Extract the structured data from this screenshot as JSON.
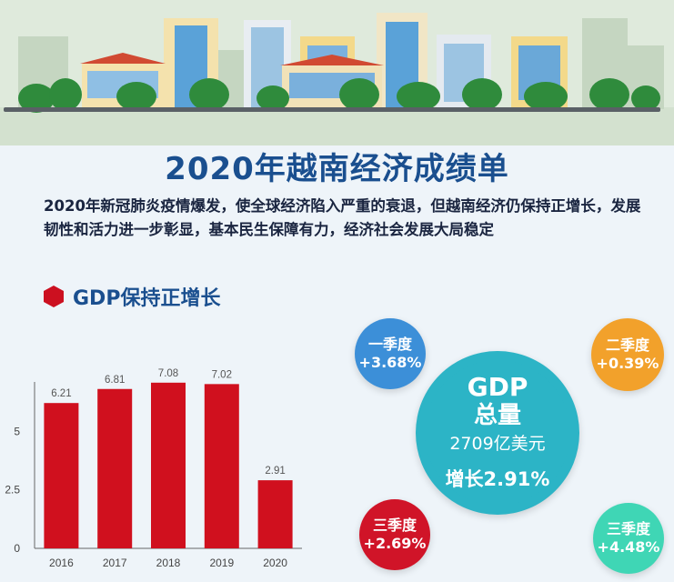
{
  "header": {
    "title": "2020年越南经济成绩单",
    "intro": "2020年新冠肺炎疫情爆发，使全球经济陷入严重的衰退，但越南经济仍保持正增长，发展韧性和活力进一步彰显，基本民生保障有力，经济社会发展大局稳定"
  },
  "section": {
    "title": "GDP保持正增长"
  },
  "gdp_total": {
    "label_line1": "GDP",
    "label_line2": "总量",
    "value": "2709亿美元",
    "growth": "增长2.91%",
    "color": "#2cb4c6"
  },
  "quarters": [
    {
      "label": "一季度",
      "value": "+3.68%",
      "color": "#3c8fd8"
    },
    {
      "label": "二季度",
      "value": "+0.39%",
      "color": "#f2a12b"
    },
    {
      "label": "三季度",
      "value": "+2.69%",
      "color": "#d01428"
    },
    {
      "label": "三季度",
      "value": "+4.48%",
      "color": "#3fd6b5"
    }
  ],
  "chart_data": {
    "type": "bar",
    "categories": [
      "2016",
      "2017",
      "2018",
      "2019",
      "2020"
    ],
    "values": [
      6.21,
      6.81,
      7.08,
      7.02,
      2.91
    ],
    "data_labels": [
      "6.21",
      "6.81",
      "7.08",
      "7.02",
      "2.91"
    ],
    "yticks": [
      "0",
      "2.5",
      "5"
    ],
    "ylim": [
      0,
      7.5
    ],
    "title": "",
    "xlabel": "",
    "ylabel": "",
    "bar_color": "#d0101e",
    "grid": false
  }
}
